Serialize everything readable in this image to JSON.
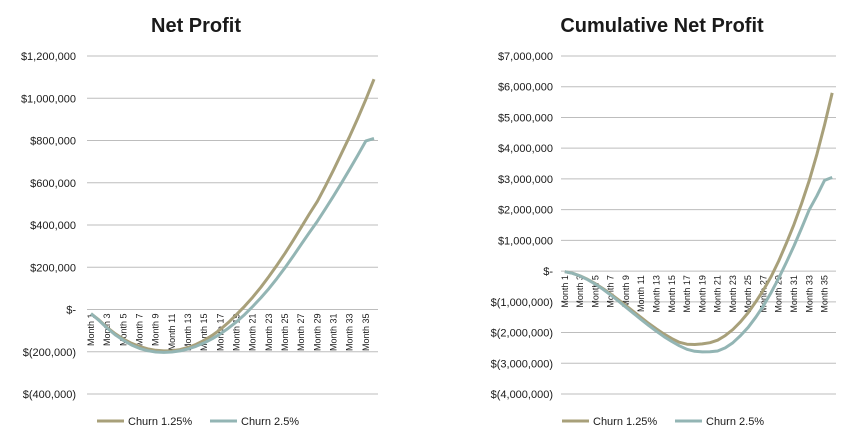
{
  "colors": {
    "churn_1_25": "#A8A07A",
    "churn_2_5": "#93B5B4",
    "grid": "#BDBDBD",
    "text": "#1a1a1a"
  },
  "chart_data": [
    {
      "type": "line",
      "title": "Net Profit",
      "xlabel": "",
      "ylabel": "",
      "categories": [
        "Month 1",
        "Month 2",
        "Month 3",
        "Month 4",
        "Month 5",
        "Month 6",
        "Month 7",
        "Month 8",
        "Month 9",
        "Month 10",
        "Month 11",
        "Month 12",
        "Month 13",
        "Month 14",
        "Month 15",
        "Month 16",
        "Month 17",
        "Month 18",
        "Month 19",
        "Month 20",
        "Month 21",
        "Month 22",
        "Month 23",
        "Month 24",
        "Month 25",
        "Month 26",
        "Month 27",
        "Month 28",
        "Month 29",
        "Month 30",
        "Month 31",
        "Month 32",
        "Month 33",
        "Month 34",
        "Month 35",
        "Month 36"
      ],
      "x_tick_labels": [
        "Month 1",
        "Month 3",
        "Month 5",
        "Month 7",
        "Month 9",
        "Month 11",
        "Month 13",
        "Month 15",
        "Month 17",
        "Month 19",
        "Month 21",
        "Month 23",
        "Month 25",
        "Month 27",
        "Month 29",
        "Month 31",
        "Month 33",
        "Month 35"
      ],
      "y_tick_labels": [
        "$1,200,000",
        "$1,000,000",
        "$800,000",
        "$600,000",
        "$400,000",
        "$200,000",
        "$-",
        "$(200,000)",
        "$(400,000)"
      ],
      "ylim": [
        -400000,
        1200000
      ],
      "grid": true,
      "legend_position": "bottom",
      "series": [
        {
          "name": "Churn 1.25%",
          "values": [
            -20000,
            -50000,
            -85000,
            -115000,
            -140000,
            -160000,
            -175000,
            -186000,
            -193000,
            -196000,
            -195000,
            -190000,
            -180000,
            -165000,
            -146000,
            -122000,
            -94000,
            -61000,
            -24000,
            15000,
            58000,
            105000,
            156000,
            210000,
            266000,
            326000,
            389000,
            452000,
            512000,
            585000,
            660000,
            740000,
            820000,
            905000,
            995000,
            1090000
          ]
        },
        {
          "name": "Churn 2.5%",
          "values": [
            -20000,
            -52000,
            -88000,
            -120000,
            -146000,
            -168000,
            -184000,
            -195000,
            -201000,
            -203000,
            -201000,
            -196000,
            -187000,
            -174000,
            -158000,
            -138000,
            -115000,
            -88000,
            -58000,
            -24000,
            14000,
            55000,
            99000,
            147000,
            198000,
            252000,
            308000,
            364000,
            418000,
            477000,
            537000,
            600000,
            664000,
            730000,
            798000,
            810000
          ]
        }
      ]
    },
    {
      "type": "line",
      "title": "Cumulative Net Profit",
      "xlabel": "",
      "ylabel": "",
      "categories": [
        "Month 1",
        "Month 2",
        "Month 3",
        "Month 4",
        "Month 5",
        "Month 6",
        "Month 7",
        "Month 8",
        "Month 9",
        "Month 10",
        "Month 11",
        "Month 12",
        "Month 13",
        "Month 14",
        "Month 15",
        "Month 16",
        "Month 17",
        "Month 18",
        "Month 19",
        "Month 20",
        "Month 21",
        "Month 22",
        "Month 23",
        "Month 24",
        "Month 25",
        "Month 26",
        "Month 27",
        "Month 28",
        "Month 29",
        "Month 30",
        "Month 31",
        "Month 32",
        "Month 33",
        "Month 34",
        "Month 35",
        "Month 36"
      ],
      "x_tick_labels": [
        "Month 1",
        "Month 3",
        "Month 5",
        "Month 7",
        "Month 9",
        "Month 11",
        "Month 13",
        "Month 15",
        "Month 17",
        "Month 19",
        "Month 21",
        "Month 23",
        "Month 25",
        "Month 27",
        "Month 29",
        "Month 31",
        "Month 33",
        "Month 35"
      ],
      "y_tick_labels": [
        "$7,000,000",
        "$6,000,000",
        "$5,000,000",
        "$4,000,000",
        "$3,000,000",
        "$2,000,000",
        "$1,000,000",
        "$-",
        "$(1,000,000)",
        "$(2,000,000)",
        "$(3,000,000)",
        "$(4,000,000)"
      ],
      "ylim": [
        -4000000,
        7000000
      ],
      "grid": true,
      "legend_position": "bottom",
      "series": [
        {
          "name": "Churn 1.25%",
          "values": [
            -20000,
            -70000,
            -155000,
            -270000,
            -410000,
            -570000,
            -745000,
            -931000,
            -1124000,
            -1320000,
            -1515000,
            -1705000,
            -1885000,
            -2050000,
            -2196000,
            -2318000,
            -2380000,
            -2390000,
            -2370000,
            -2330000,
            -2250000,
            -2100000,
            -1900000,
            -1650000,
            -1350000,
            -1000000,
            -620000,
            -180000,
            330000,
            900000,
            1520000,
            2200000,
            2950000,
            3800000,
            4750000,
            5800000
          ]
        },
        {
          "name": "Churn 2.5%",
          "values": [
            -20000,
            -72000,
            -160000,
            -280000,
            -426000,
            -594000,
            -778000,
            -973000,
            -1174000,
            -1377000,
            -1578000,
            -1774000,
            -1961000,
            -2135000,
            -2293000,
            -2431000,
            -2546000,
            -2610000,
            -2630000,
            -2625000,
            -2600000,
            -2500000,
            -2330000,
            -2100000,
            -1830000,
            -1500000,
            -1130000,
            -700000,
            -230000,
            280000,
            820000,
            1400000,
            2000000,
            2450000,
            2950000,
            3050000
          ]
        }
      ]
    }
  ]
}
